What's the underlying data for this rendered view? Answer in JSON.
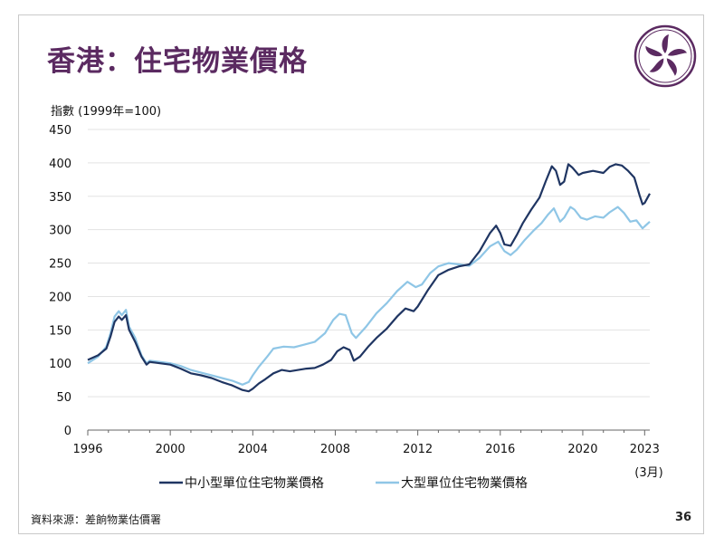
{
  "title": "香港：住宅物業價格",
  "source": "資料來源：差餉物業估價署",
  "page_number": "36",
  "colors": {
    "title": "#5b2a61",
    "small_medium": "#1f3562",
    "large": "#8fc6e6",
    "emblem": "#5b2a61"
  },
  "chart_data": {
    "type": "line",
    "ylabel": "指數 (1999年=100)",
    "ylim": [
      0,
      450
    ],
    "yticks": [
      0,
      50,
      100,
      150,
      200,
      250,
      300,
      350,
      400,
      450
    ],
    "xlim": [
      1996,
      2023.25
    ],
    "xticks": [
      1996,
      2000,
      2004,
      2008,
      2012,
      2016,
      2020,
      2023
    ],
    "x_end_note": "(3月)",
    "grid": true,
    "legend_position": "bottom",
    "series": [
      {
        "name": "中小型單位住宅物業價格",
        "color": "#1f3562",
        "points": [
          [
            1996.0,
            105
          ],
          [
            1996.5,
            112
          ],
          [
            1996.9,
            122
          ],
          [
            1997.1,
            140
          ],
          [
            1997.3,
            162
          ],
          [
            1997.5,
            170
          ],
          [
            1997.65,
            165
          ],
          [
            1997.85,
            172
          ],
          [
            1998.0,
            150
          ],
          [
            1998.3,
            132
          ],
          [
            1998.6,
            110
          ],
          [
            1998.85,
            98
          ],
          [
            1999.0,
            102
          ],
          [
            1999.5,
            100
          ],
          [
            2000.0,
            98
          ],
          [
            2000.5,
            92
          ],
          [
            2001.0,
            85
          ],
          [
            2001.5,
            82
          ],
          [
            2002.0,
            78
          ],
          [
            2002.5,
            72
          ],
          [
            2003.0,
            67
          ],
          [
            2003.5,
            60
          ],
          [
            2003.8,
            58
          ],
          [
            2004.0,
            62
          ],
          [
            2004.3,
            70
          ],
          [
            2004.6,
            76
          ],
          [
            2005.0,
            85
          ],
          [
            2005.4,
            90
          ],
          [
            2005.8,
            88
          ],
          [
            2006.2,
            90
          ],
          [
            2006.6,
            92
          ],
          [
            2007.0,
            93
          ],
          [
            2007.4,
            98
          ],
          [
            2007.8,
            105
          ],
          [
            2008.1,
            118
          ],
          [
            2008.4,
            124
          ],
          [
            2008.7,
            120
          ],
          [
            2008.9,
            104
          ],
          [
            2009.2,
            110
          ],
          [
            2009.6,
            125
          ],
          [
            2010.0,
            138
          ],
          [
            2010.5,
            152
          ],
          [
            2011.0,
            170
          ],
          [
            2011.4,
            182
          ],
          [
            2011.8,
            178
          ],
          [
            2012.0,
            185
          ],
          [
            2012.5,
            210
          ],
          [
            2013.0,
            232
          ],
          [
            2013.5,
            240
          ],
          [
            2014.0,
            245
          ],
          [
            2014.5,
            248
          ],
          [
            2015.0,
            268
          ],
          [
            2015.5,
            295
          ],
          [
            2015.8,
            306
          ],
          [
            2016.0,
            295
          ],
          [
            2016.2,
            278
          ],
          [
            2016.5,
            276
          ],
          [
            2016.8,
            292
          ],
          [
            2017.1,
            310
          ],
          [
            2017.5,
            330
          ],
          [
            2017.9,
            348
          ],
          [
            2018.2,
            372
          ],
          [
            2018.5,
            395
          ],
          [
            2018.7,
            388
          ],
          [
            2018.9,
            367
          ],
          [
            2019.1,
            372
          ],
          [
            2019.3,
            398
          ],
          [
            2019.5,
            393
          ],
          [
            2019.8,
            382
          ],
          [
            2020.0,
            385
          ],
          [
            2020.5,
            388
          ],
          [
            2021.0,
            385
          ],
          [
            2021.3,
            394
          ],
          [
            2021.6,
            398
          ],
          [
            2021.9,
            396
          ],
          [
            2022.2,
            388
          ],
          [
            2022.5,
            378
          ],
          [
            2022.75,
            352
          ],
          [
            2022.9,
            338
          ],
          [
            2023.0,
            340
          ],
          [
            2023.25,
            354
          ]
        ]
      },
      {
        "name": "大型單位住宅物業價格",
        "color": "#8fc6e6",
        "points": [
          [
            1996.0,
            100
          ],
          [
            1996.5,
            110
          ],
          [
            1996.9,
            125
          ],
          [
            1997.1,
            145
          ],
          [
            1997.3,
            170
          ],
          [
            1997.5,
            178
          ],
          [
            1997.65,
            172
          ],
          [
            1997.85,
            180
          ],
          [
            1998.0,
            155
          ],
          [
            1998.3,
            138
          ],
          [
            1998.6,
            112
          ],
          [
            1998.85,
            100
          ],
          [
            1999.0,
            104
          ],
          [
            1999.5,
            102
          ],
          [
            2000.0,
            100
          ],
          [
            2000.5,
            96
          ],
          [
            2001.0,
            90
          ],
          [
            2001.5,
            86
          ],
          [
            2002.0,
            82
          ],
          [
            2002.5,
            78
          ],
          [
            2003.0,
            74
          ],
          [
            2003.5,
            68
          ],
          [
            2003.8,
            72
          ],
          [
            2004.0,
            82
          ],
          [
            2004.3,
            95
          ],
          [
            2004.7,
            110
          ],
          [
            2005.0,
            122
          ],
          [
            2005.5,
            125
          ],
          [
            2006.0,
            124
          ],
          [
            2006.5,
            128
          ],
          [
            2007.0,
            132
          ],
          [
            2007.5,
            145
          ],
          [
            2007.9,
            165
          ],
          [
            2008.2,
            174
          ],
          [
            2008.5,
            172
          ],
          [
            2008.8,
            145
          ],
          [
            2009.0,
            138
          ],
          [
            2009.5,
            155
          ],
          [
            2010.0,
            175
          ],
          [
            2010.5,
            190
          ],
          [
            2011.0,
            208
          ],
          [
            2011.5,
            222
          ],
          [
            2011.9,
            214
          ],
          [
            2012.2,
            218
          ],
          [
            2012.6,
            235
          ],
          [
            2013.0,
            245
          ],
          [
            2013.5,
            250
          ],
          [
            2014.0,
            248
          ],
          [
            2014.5,
            246
          ],
          [
            2015.0,
            258
          ],
          [
            2015.5,
            275
          ],
          [
            2015.9,
            282
          ],
          [
            2016.2,
            268
          ],
          [
            2016.5,
            262
          ],
          [
            2016.8,
            270
          ],
          [
            2017.2,
            285
          ],
          [
            2017.6,
            298
          ],
          [
            2018.0,
            310
          ],
          [
            2018.3,
            322
          ],
          [
            2018.6,
            332
          ],
          [
            2018.9,
            312
          ],
          [
            2019.1,
            318
          ],
          [
            2019.4,
            334
          ],
          [
            2019.6,
            330
          ],
          [
            2019.9,
            318
          ],
          [
            2020.2,
            315
          ],
          [
            2020.6,
            320
          ],
          [
            2021.0,
            318
          ],
          [
            2021.3,
            326
          ],
          [
            2021.7,
            334
          ],
          [
            2022.0,
            325
          ],
          [
            2022.3,
            312
          ],
          [
            2022.6,
            314
          ],
          [
            2022.9,
            302
          ],
          [
            2023.0,
            305
          ],
          [
            2023.25,
            312
          ]
        ]
      }
    ]
  }
}
